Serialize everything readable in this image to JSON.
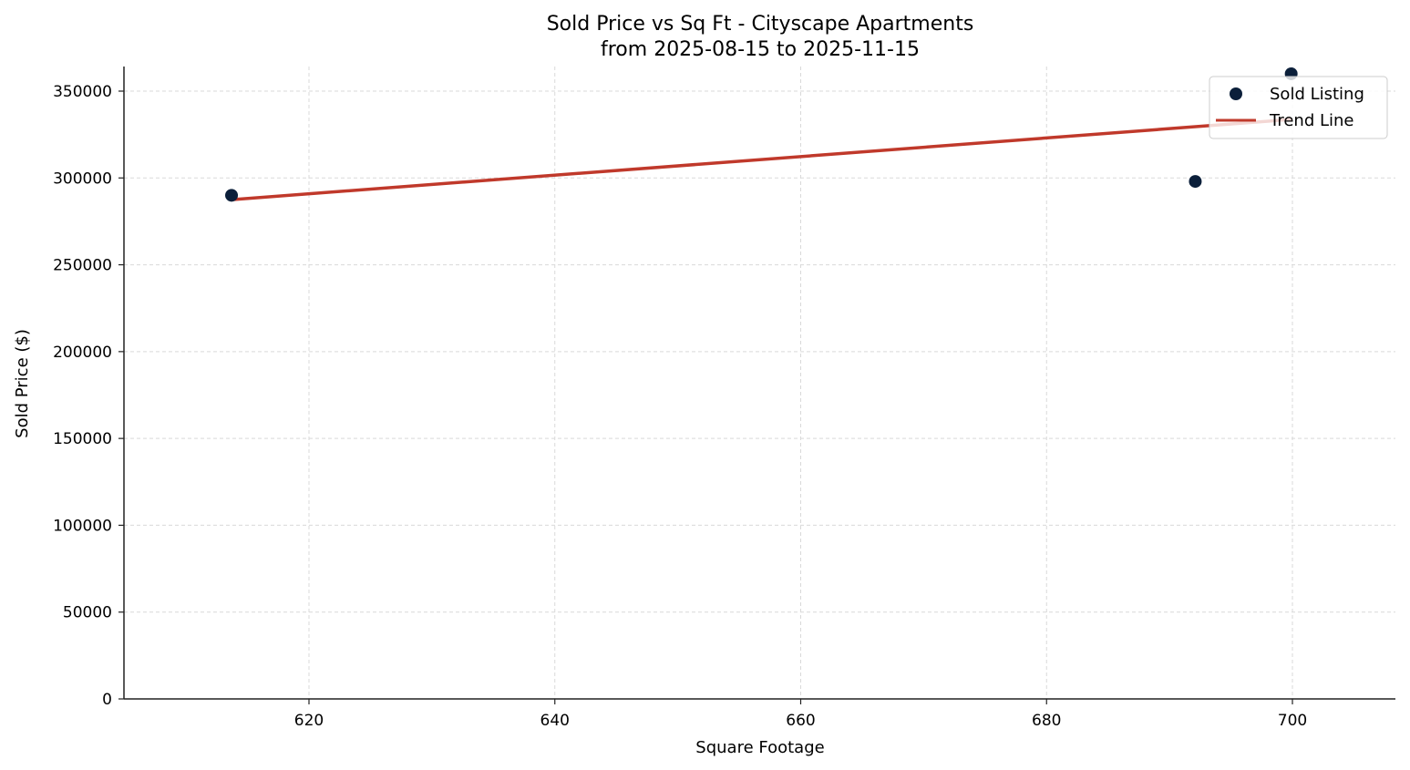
{
  "chart_data": {
    "type": "scatter",
    "title": "Sold Price vs Sq Ft - Cityscape Apartments",
    "subtitle": "from 2025-08-15 to 2025-11-15",
    "xlabel": "Square Footage",
    "ylabel": "Sold Price ($)",
    "xlim": [
      605,
      708.4
    ],
    "ylim": [
      0,
      364000
    ],
    "xticks": [
      620,
      640,
      660,
      680,
      700
    ],
    "yticks": [
      0,
      50000,
      100000,
      150000,
      200000,
      250000,
      300000,
      350000
    ],
    "grid": true,
    "legend_position": "upper right",
    "series": [
      {
        "name": "Sold Listing",
        "kind": "scatter",
        "color": "#0b1f3a",
        "points": [
          {
            "x": 613.7,
            "y": 290000
          },
          {
            "x": 692.1,
            "y": 298000
          },
          {
            "x": 699.9,
            "y": 360000
          }
        ]
      },
      {
        "name": "Trend Line",
        "kind": "line",
        "color": "#c0392b",
        "points": [
          {
            "x": 613.7,
            "y": 287500
          },
          {
            "x": 699.9,
            "y": 333700
          }
        ]
      }
    ]
  },
  "legend": {
    "items": [
      {
        "label": "Sold Listing"
      },
      {
        "label": "Trend Line"
      }
    ]
  }
}
